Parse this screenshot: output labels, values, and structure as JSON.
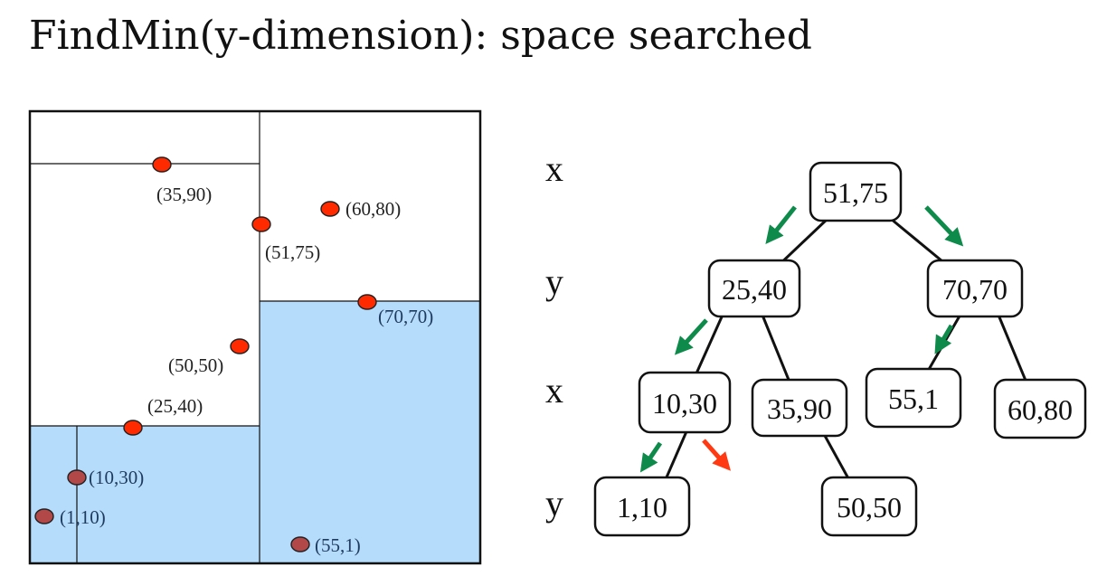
{
  "title": "FindMin(y-dimension): space searched",
  "colors": {
    "searched_region": "#b5dcfb",
    "point_fill": "#ff2a00",
    "point_dim_fill": "#b24848",
    "search_arrow": "#0e8a4a",
    "pruned_arrow": "#ff3a12"
  },
  "points": [
    {
      "label": "(35,90)"
    },
    {
      "label": "(60,80)"
    },
    {
      "label": "(51,75)"
    },
    {
      "label": "(70,70)"
    },
    {
      "label": "(50,50)"
    },
    {
      "label": "(25,40)"
    },
    {
      "label": "(10,30)"
    },
    {
      "label": "(1,10)"
    },
    {
      "label": "(55,1)"
    }
  ],
  "levels": [
    "x",
    "y",
    "x",
    "y"
  ],
  "tree_nodes": [
    {
      "id": "n1",
      "label": "51,75"
    },
    {
      "id": "n2",
      "label": "25,40"
    },
    {
      "id": "n3",
      "label": "70,70"
    },
    {
      "id": "n4",
      "label": "10,30"
    },
    {
      "id": "n5",
      "label": "35,90"
    },
    {
      "id": "n6",
      "label": "55,1"
    },
    {
      "id": "n7",
      "label": "60,80"
    },
    {
      "id": "n8",
      "label": "1,10"
    },
    {
      "id": "n9",
      "label": "50,50"
    }
  ]
}
